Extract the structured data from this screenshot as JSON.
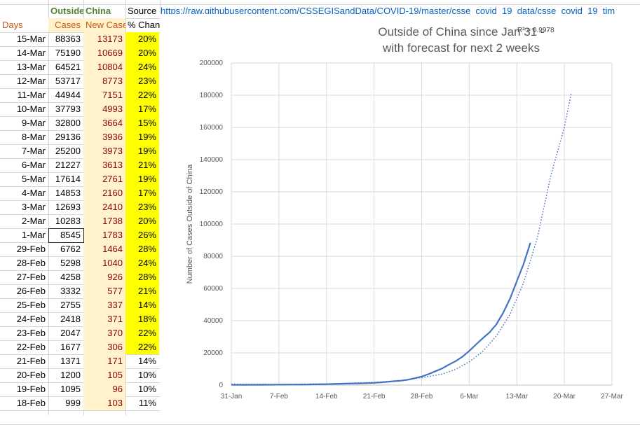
{
  "header": {
    "col_b": "Outside",
    "col_c": "China",
    "col_d": "Source",
    "source_url": "https://raw.githubusercontent.com/CSSEGISandData/COVID-19/master/csse_covid_19_data/csse_covid_19_tim"
  },
  "columns": {
    "days": "Days",
    "cases": "Cases",
    "new_cases": "New Case",
    "pct": "% Chang"
  },
  "rows": [
    {
      "day": "15-Mar",
      "cases": "88363",
      "new": "13173",
      "pct": "20%"
    },
    {
      "day": "14-Mar",
      "cases": "75190",
      "new": "10669",
      "pct": "20%"
    },
    {
      "day": "13-Mar",
      "cases": "64521",
      "new": "10804",
      "pct": "24%"
    },
    {
      "day": "12-Mar",
      "cases": "53717",
      "new": "8773",
      "pct": "23%"
    },
    {
      "day": "11-Mar",
      "cases": "44944",
      "new": "7151",
      "pct": "22%"
    },
    {
      "day": "10-Mar",
      "cases": "37793",
      "new": "4993",
      "pct": "17%"
    },
    {
      "day": "9-Mar",
      "cases": "32800",
      "new": "3664",
      "pct": "15%"
    },
    {
      "day": "8-Mar",
      "cases": "29136",
      "new": "3936",
      "pct": "19%"
    },
    {
      "day": "7-Mar",
      "cases": "25200",
      "new": "3973",
      "pct": "19%"
    },
    {
      "day": "6-Mar",
      "cases": "21227",
      "new": "3613",
      "pct": "21%"
    },
    {
      "day": "5-Mar",
      "cases": "17614",
      "new": "2761",
      "pct": "19%"
    },
    {
      "day": "4-Mar",
      "cases": "14853",
      "new": "2160",
      "pct": "17%"
    },
    {
      "day": "3-Mar",
      "cases": "12693",
      "new": "2410",
      "pct": "23%"
    },
    {
      "day": "2-Mar",
      "cases": "10283",
      "new": "1738",
      "pct": "20%"
    },
    {
      "day": "1-Mar",
      "cases": "8545",
      "new": "1783",
      "pct": "26%"
    },
    {
      "day": "29-Feb",
      "cases": "6762",
      "new": "1464",
      "pct": "28%"
    },
    {
      "day": "28-Feb",
      "cases": "5298",
      "new": "1040",
      "pct": "24%"
    },
    {
      "day": "27-Feb",
      "cases": "4258",
      "new": "926",
      "pct": "28%"
    },
    {
      "day": "26-Feb",
      "cases": "3332",
      "new": "577",
      "pct": "21%"
    },
    {
      "day": "25-Feb",
      "cases": "2755",
      "new": "337",
      "pct": "14%"
    },
    {
      "day": "24-Feb",
      "cases": "2418",
      "new": "371",
      "pct": "18%"
    },
    {
      "day": "23-Feb",
      "cases": "2047",
      "new": "370",
      "pct": "22%"
    },
    {
      "day": "22-Feb",
      "cases": "1677",
      "new": "306",
      "pct": "22%"
    },
    {
      "day": "21-Feb",
      "cases": "1371",
      "new": "171",
      "pct": "14%"
    },
    {
      "day": "20-Feb",
      "cases": "1200",
      "new": "105",
      "pct": "10%"
    },
    {
      "day": "19-Feb",
      "cases": "1095",
      "new": "96",
      "pct": "10%"
    },
    {
      "day": "18-Feb",
      "cases": "999",
      "new": "103",
      "pct": "11%"
    }
  ],
  "highlight_rows_yellow": 23,
  "colors": {
    "header_text": "#c55a11",
    "new_cases_text": "#8b0000",
    "cream": "#fff2cc",
    "yellow": "#ffff00",
    "series": "#4472c4"
  },
  "chart_data": {
    "type": "line",
    "title": "Outside of China since Jan 31 -\nwith forecast for next 2 weeks",
    "title_lines": [
      "Outside of China since Jan 31 -",
      "with forecast for next 2 weeks"
    ],
    "annotation": "R² = 0.9978",
    "ylabel": "Number of Cases Outside of China",
    "xlabel": "",
    "x_tick_labels": [
      "31-Jan",
      "7-Feb",
      "14-Feb",
      "21-Feb",
      "28-Feb",
      "6-Mar",
      "13-Mar",
      "20-Mar",
      "27-Mar"
    ],
    "xlim": [
      "31-Jan",
      "27-Mar"
    ],
    "ylim": [
      0,
      200000
    ],
    "y_ticks": [
      0,
      20000,
      40000,
      60000,
      80000,
      100000,
      120000,
      140000,
      160000,
      180000,
      200000
    ],
    "grid": true,
    "series": [
      {
        "style": "solid",
        "x": [
          "31-Jan",
          "2-Feb",
          "5-Feb",
          "8-Feb",
          "11-Feb",
          "14-Feb",
          "17-Feb",
          "18-Feb",
          "19-Feb",
          "20-Feb",
          "21-Feb",
          "22-Feb",
          "23-Feb",
          "24-Feb",
          "25-Feb",
          "26-Feb",
          "27-Feb",
          "28-Feb",
          "29-Feb",
          "1-Mar",
          "2-Mar",
          "3-Mar",
          "4-Mar",
          "5-Mar",
          "6-Mar",
          "7-Mar",
          "8-Mar",
          "9-Mar",
          "10-Mar",
          "11-Mar",
          "12-Mar",
          "13-Mar",
          "14-Mar",
          "15-Mar"
        ],
        "values": [
          130,
          180,
          230,
          300,
          400,
          550,
          900,
          999,
          1095,
          1200,
          1371,
          1677,
          2047,
          2418,
          2755,
          3332,
          4258,
          5298,
          6762,
          8545,
          10283,
          12693,
          14853,
          17614,
          21227,
          25200,
          29136,
          32800,
          37793,
          44944,
          53717,
          64521,
          75190,
          88363
        ]
      },
      {
        "style": "dotted",
        "x": [
          "31-Jan",
          "7-Feb",
          "14-Feb",
          "21-Feb",
          "25-Feb",
          "28-Feb",
          "2-Mar",
          "4-Mar",
          "6-Mar",
          "8-Mar",
          "10-Mar",
          "12-Mar",
          "14-Mar",
          "16-Mar",
          "18-Mar",
          "20-Mar",
          "21-Mar"
        ],
        "values": [
          600,
          500,
          800,
          1700,
          2900,
          4600,
          6800,
          9800,
          14400,
          21000,
          30500,
          44000,
          63500,
          91000,
          130000,
          160000,
          181000
        ]
      }
    ]
  }
}
